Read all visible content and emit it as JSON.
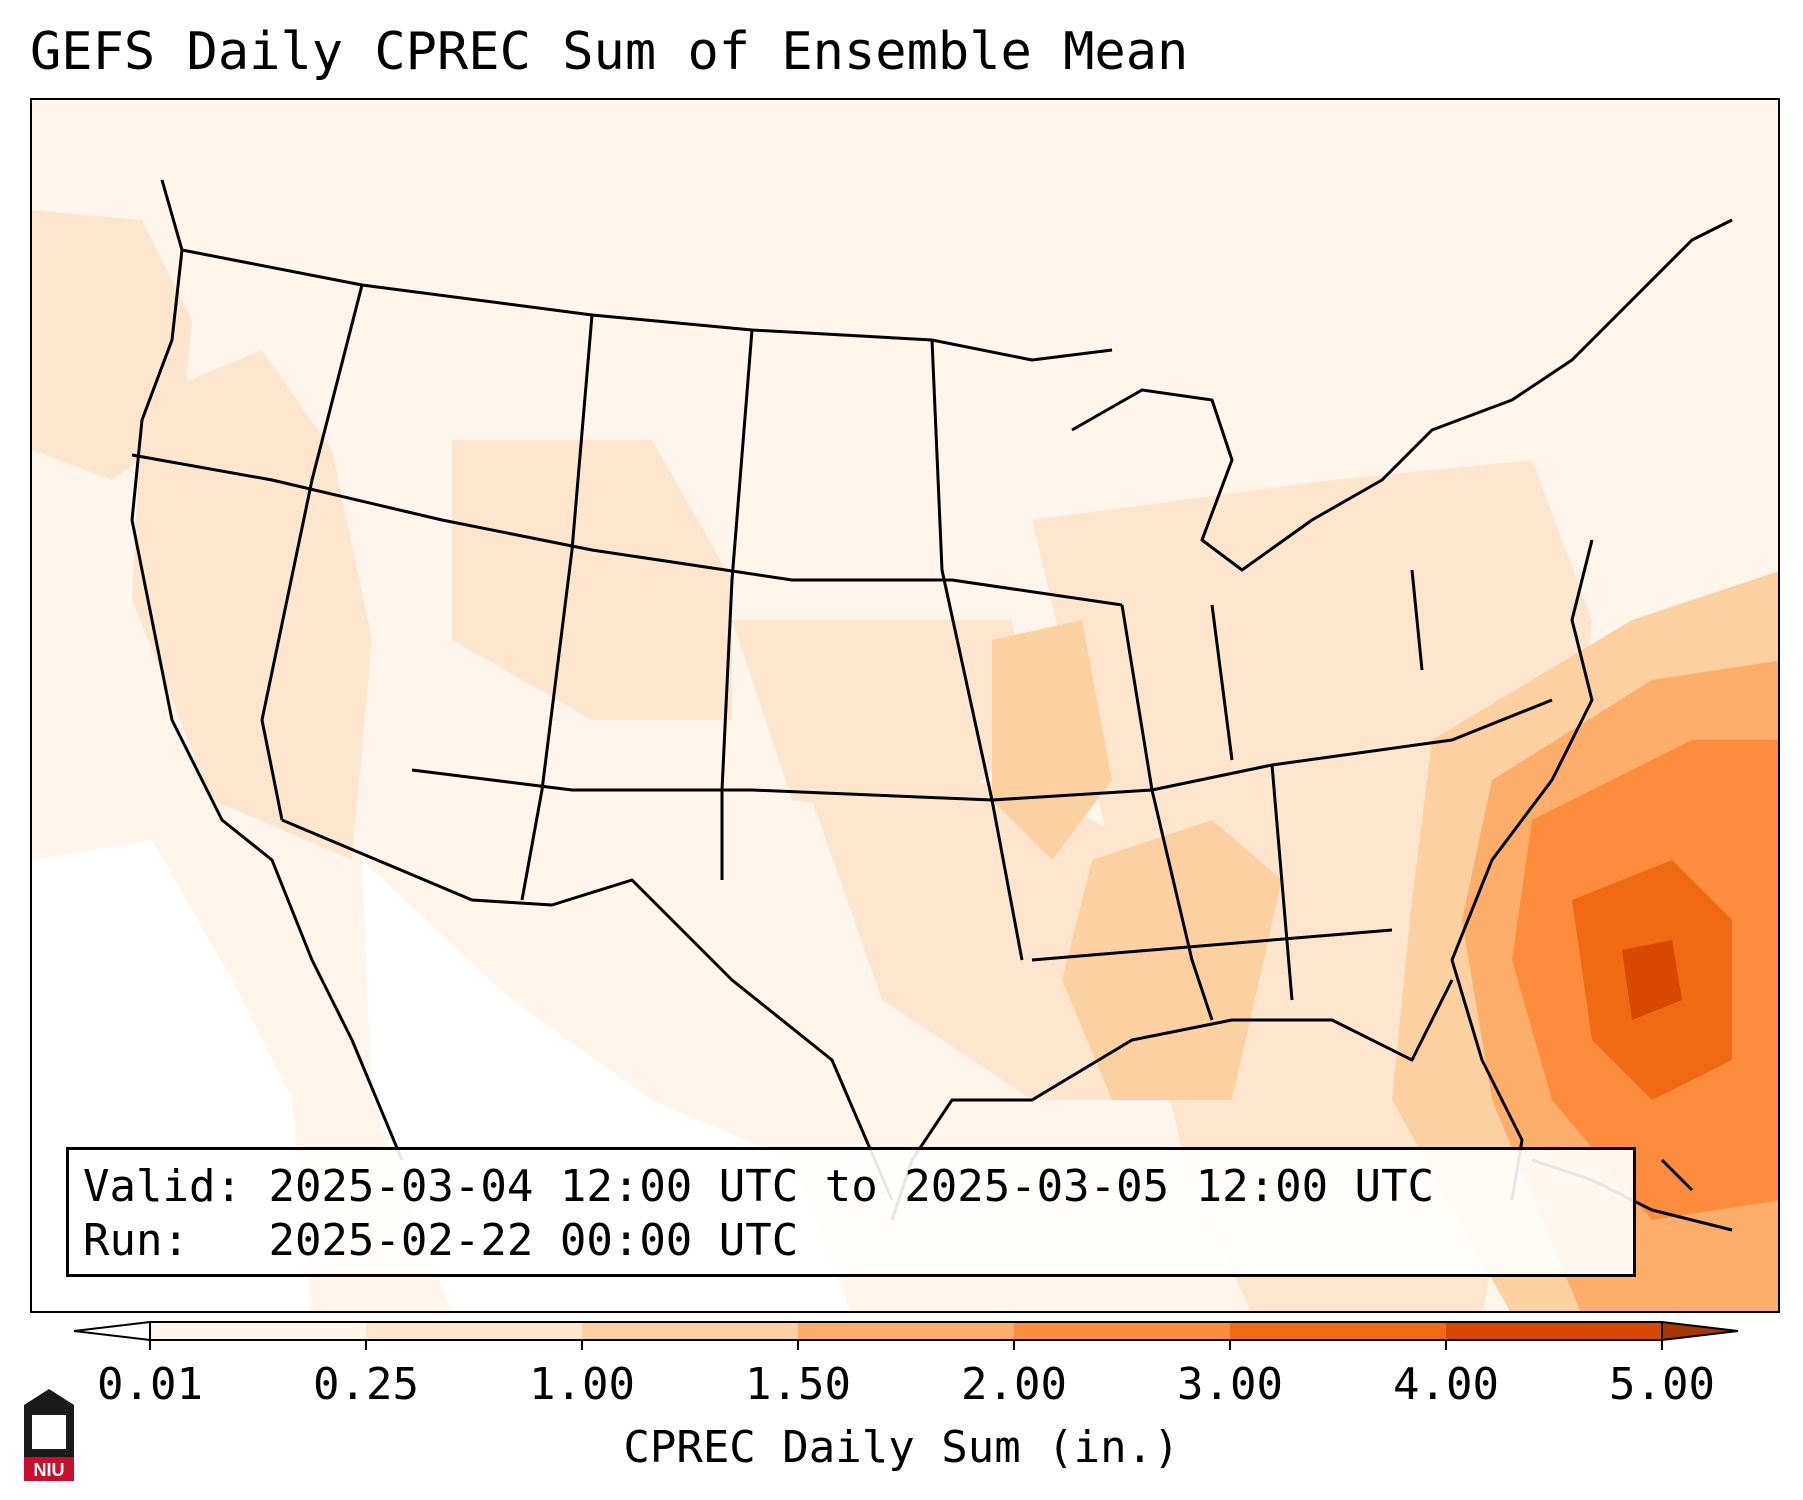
{
  "title": "GEFS Daily CPREC Sum of Ensemble Mean",
  "info": {
    "valid_label": "Valid:",
    "valid_value": "2025-03-04 12:00 UTC to 2025-03-05 12:00 UTC",
    "run_label": "Run:",
    "run_value": "2025-02-22 00:00 UTC"
  },
  "colorbar": {
    "label": "CPREC Daily Sum (in.)",
    "ticks": [
      "0.01",
      "0.25",
      "1.00",
      "1.50",
      "2.00",
      "3.00",
      "4.00",
      "5.00"
    ],
    "colors": [
      "#fff5eb",
      "#fee6ce",
      "#fdd0a2",
      "#fdae6b",
      "#fd8d3c",
      "#f16913",
      "#d94801"
    ],
    "under_color": "#ffffff",
    "over_color": "#a63603"
  },
  "logo": {
    "text": "NIU",
    "icon": "niu-building-icon",
    "color": "#c8102e"
  }
}
